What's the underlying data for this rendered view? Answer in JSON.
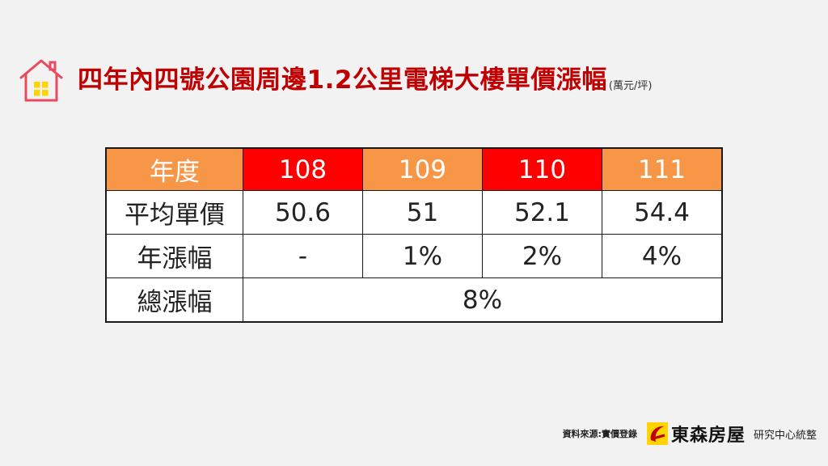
{
  "title": "四年內四號公園周邊1.2公里電梯大樓單價漲幅",
  "unit": "(萬元/坪)",
  "table": {
    "header": [
      "年度",
      "108",
      "109",
      "110",
      "111"
    ],
    "rows": [
      [
        "平均單價",
        "50.6",
        "51",
        "52.1",
        "54.4"
      ],
      [
        "年漲幅",
        "-",
        "1%",
        "2%",
        "4%"
      ]
    ],
    "total_label": "總漲幅",
    "total_value": "8%"
  },
  "footer": {
    "source": "資料來源:實價登錄",
    "brand": "東森房屋",
    "center": "研究中心統整"
  },
  "colors": {
    "title": "#c00000",
    "header_orange": "#f79646",
    "header_red": "#ff0000",
    "house_icon": "#e84a5f",
    "window": "#ffd400"
  },
  "icons": [
    "house-icon",
    "brand-logo-icon"
  ]
}
